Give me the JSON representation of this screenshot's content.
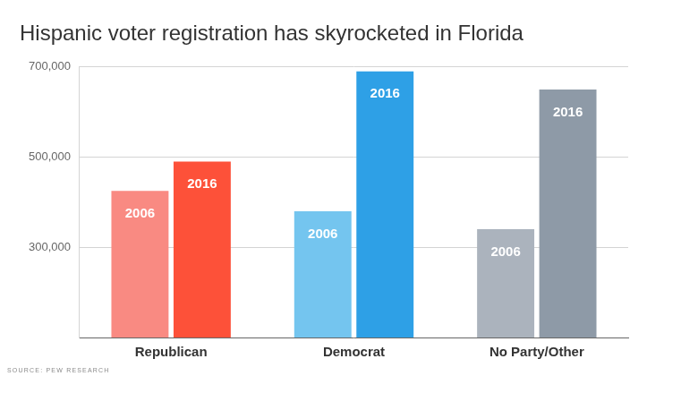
{
  "chart_data": {
    "type": "bar",
    "title": "Hispanic voter registration has skyrocketed in Florida",
    "source": "SOURCE: PEW RESEARCH",
    "categories": [
      "Republican",
      "Democrat",
      "No Party/Other"
    ],
    "series": [
      {
        "name": "2006",
        "colors": [
          "#f98a82",
          "#74c5ef",
          "#abb3bd"
        ],
        "values": [
          425000,
          380000,
          340000
        ]
      },
      {
        "name": "2016",
        "colors": [
          "#fd5139",
          "#2ea0e6",
          "#8e9aa7"
        ],
        "values": [
          490000,
          690000,
          650000
        ]
      }
    ],
    "ylim": [
      100000,
      700000
    ],
    "yticks": [
      {
        "value": 300000,
        "label": "300,000"
      },
      {
        "value": 500000,
        "label": "500,000"
      },
      {
        "value": 700000,
        "label": "700,000"
      }
    ],
    "grid": true
  }
}
